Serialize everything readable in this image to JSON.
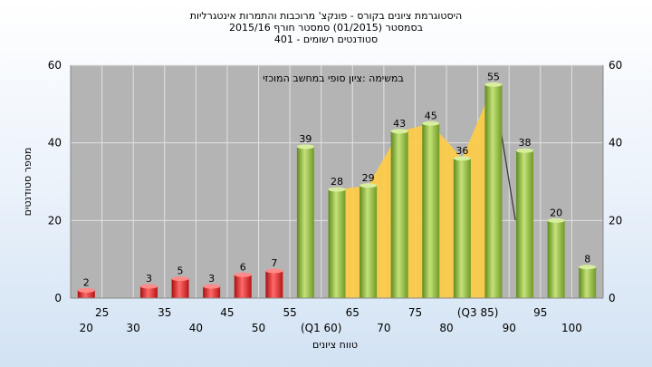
{
  "chart_data": {
    "type": "bar",
    "title_lines": [
      "היסטוגרמת ציונים בקורס - פונקצ' מרוכבות והתמרות אינטגרליות",
      "בסמסטר  (01/2015)  סמסטר חורף  2015/16",
      "סטודנטים רשומים - 401"
    ],
    "annotation": "במשימה :ציון סופי במחשב המוכזי",
    "xlabel": "טווח ציונים",
    "ylabel": "מספר סטודנטים",
    "ylim": [
      0,
      60
    ],
    "yticks": [
      0,
      20,
      40,
      60
    ],
    "x_lower_labels": [
      "20",
      "30",
      "40",
      "50",
      "(Q1 60)",
      "70",
      "80",
      "90",
      "100"
    ],
    "x_upper_labels": [
      "25",
      "35",
      "45",
      "55",
      "65",
      "75",
      "(Q3 85)",
      "95"
    ],
    "categories": [
      "20",
      "25",
      "30",
      "35",
      "40",
      "45",
      "50",
      "55",
      "60",
      "65",
      "70",
      "75",
      "80",
      "85",
      "90",
      "95",
      "100"
    ],
    "values": [
      2,
      null,
      3,
      5,
      3,
      6,
      7,
      39,
      28,
      29,
      43,
      45,
      36,
      55,
      38,
      20,
      8
    ],
    "bar_colors": {
      "fail": "#dd2222",
      "pass": "#8fbb3c"
    },
    "band": {
      "from": "60",
      "to": "85",
      "color": "#ffcc44"
    },
    "grid": true,
    "secondary_y_axis": true
  }
}
